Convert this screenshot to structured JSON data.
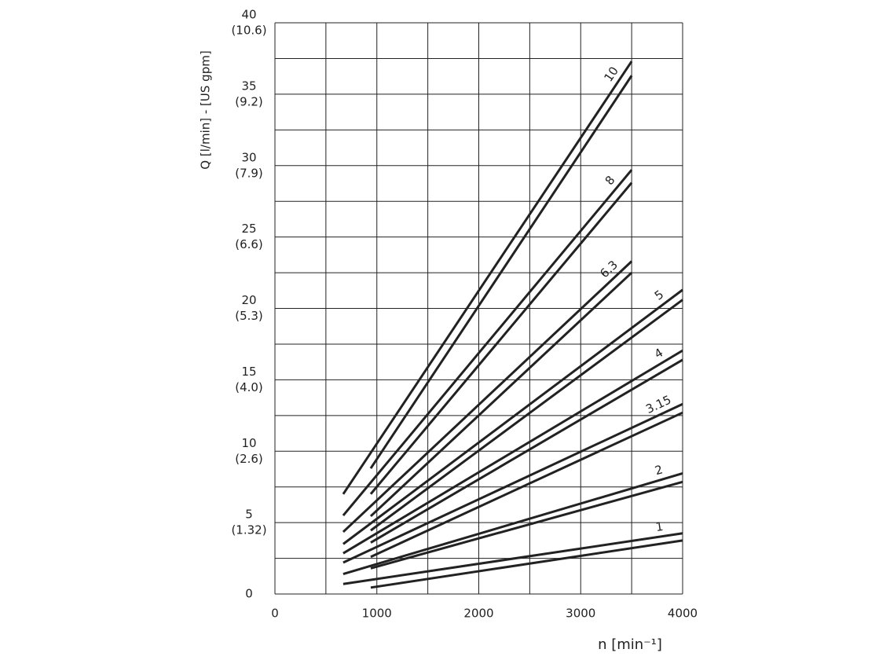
{
  "chart_data": {
    "type": "line",
    "xlabel": "n  [min⁻¹]",
    "ylabel": "Q [l/min] - [US gpm]",
    "xlim": [
      0,
      4000
    ],
    "ylim": [
      0,
      40
    ],
    "xticks": [
      0,
      1000,
      2000,
      3000,
      4000
    ],
    "xminorticks": [
      500,
      1500,
      2500,
      3500
    ],
    "yticks": [
      0,
      5,
      10,
      15,
      20,
      25,
      30,
      35,
      40
    ],
    "ytick_gpm_labels": [
      null,
      "(1.32)",
      "(2.6)",
      "(4.0)",
      "(5.3)",
      "(6.6)",
      "(7.9)",
      "(9.2)",
      "(10.6)"
    ],
    "yminorticks": [
      2.5,
      7.5,
      12.5,
      17.5,
      22.5,
      27.5,
      32.5,
      37.5
    ],
    "grid": true,
    "series": [
      {
        "name": "10",
        "color": "#222222",
        "lines": [
          {
            "x": [
              670,
              3500
            ],
            "values": [
              7.0,
              37.3
            ]
          },
          {
            "x": [
              940,
              3500
            ],
            "values": [
              8.8,
              36.3
            ]
          }
        ]
      },
      {
        "name": "8",
        "color": "#222222",
        "lines": [
          {
            "x": [
              670,
              3500
            ],
            "values": [
              5.5,
              29.7
            ]
          },
          {
            "x": [
              940,
              3500
            ],
            "values": [
              7.0,
              28.8
            ]
          }
        ]
      },
      {
        "name": "6.3",
        "color": "#222222",
        "lines": [
          {
            "x": [
              670,
              3500
            ],
            "values": [
              4.35,
              23.3
            ]
          },
          {
            "x": [
              940,
              3500
            ],
            "values": [
              5.45,
              22.5
            ]
          }
        ]
      },
      {
        "name": "5",
        "color": "#222222",
        "lines": [
          {
            "x": [
              670,
              4000
            ],
            "values": [
              3.5,
              21.3
            ]
          },
          {
            "x": [
              940,
              4000
            ],
            "values": [
              4.45,
              20.6
            ]
          }
        ]
      },
      {
        "name": "4",
        "color": "#222222",
        "lines": [
          {
            "x": [
              670,
              4000
            ],
            "values": [
              2.85,
              17.05
            ]
          },
          {
            "x": [
              940,
              4000
            ],
            "values": [
              3.6,
              16.4
            ]
          }
        ]
      },
      {
        "name": "3.15",
        "color": "#222222",
        "lines": [
          {
            "x": [
              670,
              4000
            ],
            "values": [
              2.2,
              13.3
            ]
          },
          {
            "x": [
              940,
              4000
            ],
            "values": [
              2.6,
              12.7
            ]
          }
        ]
      },
      {
        "name": "2",
        "color": "#222222",
        "lines": [
          {
            "x": [
              670,
              4000
            ],
            "values": [
              1.4,
              8.45
            ]
          },
          {
            "x": [
              940,
              4000
            ],
            "values": [
              1.8,
              7.85
            ]
          }
        ]
      },
      {
        "name": "1",
        "color": "#222222",
        "lines": [
          {
            "x": [
              670,
              4000
            ],
            "values": [
              0.7,
              4.25
            ]
          },
          {
            "x": [
              940,
              4000
            ],
            "values": [
              0.45,
              3.75
            ]
          }
        ]
      }
    ]
  }
}
